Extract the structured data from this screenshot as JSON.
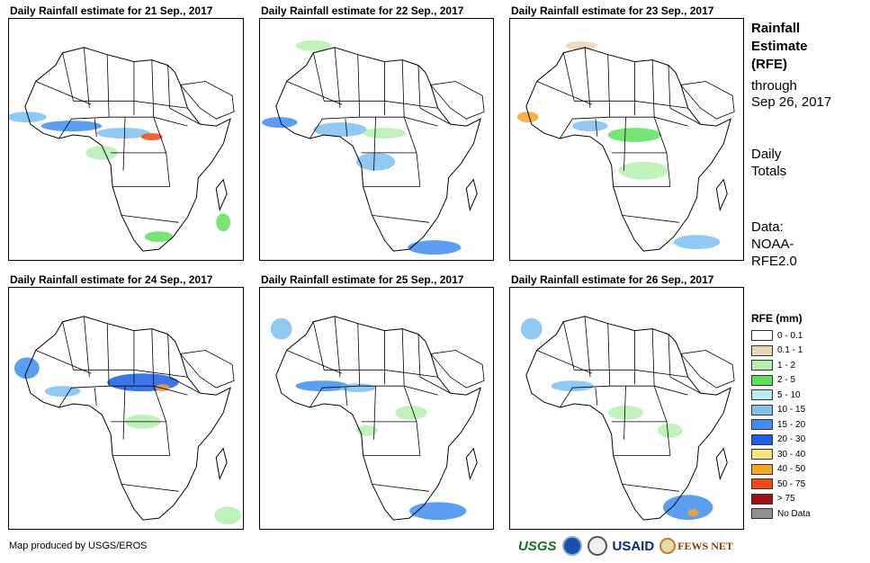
{
  "panels": [
    {
      "title": "Daily Rainfall estimate for 21 Sep., 2017"
    },
    {
      "title": "Daily Rainfall estimate for 22 Sep., 2017"
    },
    {
      "title": "Daily Rainfall estimate for 23 Sep., 2017"
    },
    {
      "title": "Daily Rainfall estimate for 24 Sep., 2017"
    },
    {
      "title": "Daily Rainfall estimate for 25 Sep., 2017"
    },
    {
      "title": "Daily Rainfall estimate for 26 Sep., 2017"
    }
  ],
  "side": {
    "title_lines": [
      "Rainfall",
      "Estimate",
      "(RFE)"
    ],
    "through": "through",
    "date": "Sep 26, 2017",
    "daily": "Daily",
    "totals": "Totals",
    "data_label": "Data:",
    "noaa": "NOAA-",
    "rfe": "RFE2.0"
  },
  "legend": {
    "title": "RFE (mm)",
    "items": [
      {
        "label": "0 - 0.1",
        "color": "#ffffff"
      },
      {
        "label": "0.1 - 1",
        "color": "#e8d6b8"
      },
      {
        "label": "1 - 2",
        "color": "#b4f0b0"
      },
      {
        "label": "2 - 5",
        "color": "#5ee05a"
      },
      {
        "label": "5 - 10",
        "color": "#b6eef0"
      },
      {
        "label": "10 - 15",
        "color": "#7fc0f0"
      },
      {
        "label": "15 - 20",
        "color": "#3f8ef0"
      },
      {
        "label": "20 - 30",
        "color": "#1a5fe6"
      },
      {
        "label": "30 - 40",
        "color": "#f8e47c"
      },
      {
        "label": "40 - 50",
        "color": "#f5a623"
      },
      {
        "label": "50 - 75",
        "color": "#f24a10"
      },
      {
        "label": "> 75",
        "color": "#a01010"
      },
      {
        "label": "No Data",
        "color": "#909090"
      }
    ]
  },
  "footer": {
    "credit": "Map produced by USGS/EROS"
  },
  "logos": {
    "usgs": "USGS",
    "noaa": "NOAA",
    "usaid": "USAID",
    "fews": "FEWS NET"
  }
}
